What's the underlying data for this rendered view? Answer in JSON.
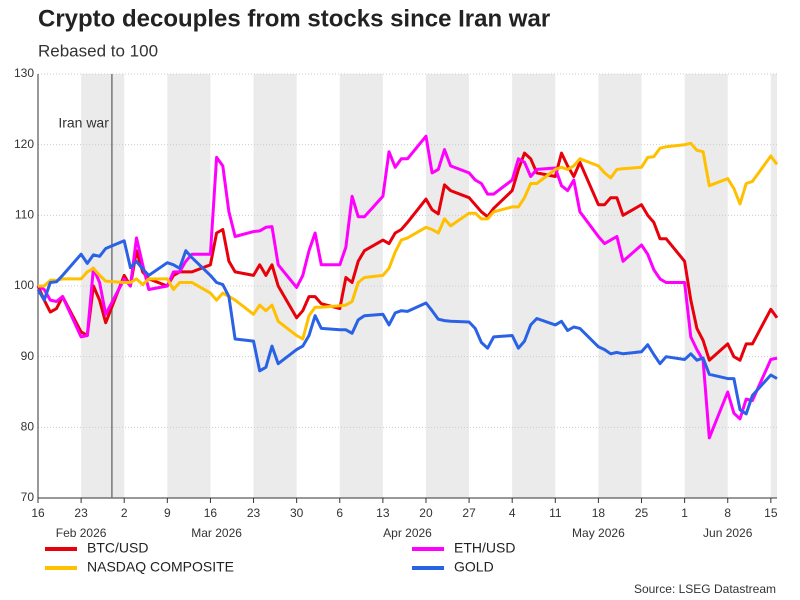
{
  "chart_data": {
    "type": "line",
    "title": "Crypto decouples from stocks since Iran war",
    "subtitle": "Rebased to 100",
    "source": "Source: LSEG Datastream",
    "x": [
      "2026-02-16",
      "2026-02-17",
      "2026-02-18",
      "2026-02-19",
      "2026-02-20",
      "2026-02-23",
      "2026-02-24",
      "2026-02-25",
      "2026-02-26",
      "2026-02-27",
      "2026-03-02",
      "2026-03-03",
      "2026-03-04",
      "2026-03-05",
      "2026-03-06",
      "2026-03-09",
      "2026-03-10",
      "2026-03-11",
      "2026-03-12",
      "2026-03-13",
      "2026-03-16",
      "2026-03-17",
      "2026-03-18",
      "2026-03-19",
      "2026-03-20",
      "2026-03-23",
      "2026-03-24",
      "2026-03-25",
      "2026-03-26",
      "2026-03-27",
      "2026-03-30",
      "2026-03-31",
      "2026-04-01",
      "2026-04-02",
      "2026-04-03",
      "2026-04-06",
      "2026-04-07",
      "2026-04-08",
      "2026-04-09",
      "2026-04-10",
      "2026-04-13",
      "2026-04-14",
      "2026-04-15",
      "2026-04-16",
      "2026-04-17",
      "2026-04-20",
      "2026-04-21",
      "2026-04-22",
      "2026-04-23",
      "2026-04-24",
      "2026-04-27",
      "2026-04-28",
      "2026-04-29",
      "2026-04-30",
      "2026-05-01",
      "2026-05-04",
      "2026-05-05",
      "2026-05-06",
      "2026-05-07",
      "2026-05-08",
      "2026-05-11",
      "2026-05-12",
      "2026-05-13",
      "2026-05-14",
      "2026-05-15",
      "2026-05-18",
      "2026-05-19",
      "2026-05-20",
      "2026-05-21",
      "2026-05-22",
      "2026-05-25",
      "2026-05-26",
      "2026-05-27",
      "2026-05-28",
      "2026-05-29",
      "2026-06-01",
      "2026-06-02",
      "2026-06-03",
      "2026-06-04",
      "2026-06-05",
      "2026-06-08",
      "2026-06-09",
      "2026-06-10",
      "2026-06-11",
      "2026-06-12",
      "2026-06-15",
      "2026-06-16"
    ],
    "series": [
      {
        "name": "BTC/USD",
        "color": "#e8000b",
        "values": [
          100,
          98,
          96.3,
          96.8,
          98.5,
          93.5,
          93,
          100,
          98,
          94.8,
          101.5,
          100,
          105,
          102,
          101,
          100,
          101.5,
          102,
          102,
          102,
          103,
          107.5,
          108,
          103.5,
          102,
          101.5,
          103,
          101.5,
          103,
          100,
          95.5,
          96.5,
          98.5,
          98.5,
          97.5,
          96.8,
          101.2,
          100.5,
          103.5,
          105,
          106.5,
          106,
          107.5,
          108,
          109,
          112.3,
          110.8,
          110.2,
          114.3,
          113.5,
          112.5,
          111.5,
          110.5,
          109.8,
          111,
          113.5,
          116.5,
          118.8,
          118,
          116,
          115.5,
          118.8,
          117,
          115.5,
          117.5,
          111.5,
          111.5,
          112.5,
          112.5,
          110,
          111.5,
          110,
          109,
          106.7,
          106.7,
          103.5,
          98,
          94,
          92.3,
          89.5,
          91.8,
          90,
          89.5,
          91.8,
          91.8,
          96.7,
          95.5
        ]
      },
      {
        "name": "ETH/USD",
        "color": "#f0f",
        "values": [
          100,
          99.5,
          98,
          97.8,
          98.5,
          92.8,
          93,
          102.5,
          100.5,
          96,
          101,
          100,
          106.8,
          103,
          99.5,
          100,
          102,
          102,
          103.5,
          104.5,
          104.5,
          118.2,
          117,
          110.5,
          107,
          107.7,
          107.8,
          108.3,
          108.4,
          103,
          99.8,
          101.5,
          105,
          107.5,
          103,
          103,
          105.5,
          112.7,
          109.8,
          109.8,
          112.7,
          119,
          116.8,
          118,
          118,
          121.2,
          116,
          116.5,
          119.3,
          117,
          116,
          115,
          114.5,
          113,
          113,
          115,
          118,
          117.5,
          115.5,
          116.5,
          116.7,
          114.2,
          113.5,
          115,
          110.5,
          107,
          106,
          106.5,
          107,
          103.5,
          105.8,
          104.5,
          102.3,
          101,
          100.5,
          100.5,
          92.8,
          91,
          89.5,
          78.5,
          85,
          82,
          81.2,
          84,
          83.8,
          89.6,
          89.8
        ]
      },
      {
        "name": "NASDAQ COMPOSITE",
        "color": "#ffc000",
        "values": [
          100,
          100,
          100.8,
          100.8,
          101,
          101,
          102,
          102.5,
          101.5,
          100.7,
          100.5,
          100.5,
          101,
          100.2,
          101,
          101,
          99.5,
          100.5,
          100.5,
          100.5,
          99,
          98,
          99,
          98.5,
          98,
          96,
          97.3,
          96.5,
          97.3,
          95,
          93,
          92.5,
          95.8,
          97,
          97,
          97.2,
          97.3,
          97.8,
          100.5,
          101.2,
          101.5,
          102.5,
          104.8,
          106.5,
          106.8,
          108.3,
          108,
          107.5,
          109.5,
          108.5,
          110.3,
          110.3,
          109.5,
          109.5,
          110.5,
          111.2,
          111.2,
          112.5,
          114.5,
          114.5,
          116.5,
          116.8,
          116.5,
          117,
          118,
          117,
          116,
          115.3,
          116.5,
          116.6,
          116.8,
          118.2,
          118.3,
          119.5,
          119.7,
          120,
          120.2,
          119.2,
          119,
          114.2,
          115.2,
          113.8,
          111.6,
          114.5,
          114.8,
          118.4,
          117.2
        ]
      },
      {
        "name": "GOLD",
        "color": "#2a62e6",
        "values": [
          99.5,
          98,
          100.5,
          100.6,
          101.5,
          104.5,
          103.2,
          104.4,
          104.2,
          105.3,
          106.4,
          102.6,
          103.5,
          102.4,
          101.5,
          103.3,
          103,
          102.5,
          105,
          104,
          101.5,
          100.5,
          100.2,
          98.5,
          92.5,
          92.2,
          88,
          88.5,
          91.5,
          89,
          91,
          91.5,
          93,
          95.8,
          94,
          93.8,
          93.8,
          93.3,
          95.2,
          95.8,
          96,
          94.5,
          96.2,
          96.5,
          96.4,
          97.6,
          96.5,
          95.3,
          95.1,
          95,
          94.9,
          94,
          92,
          91.2,
          92.8,
          93,
          91.2,
          92.2,
          94.5,
          95.4,
          94.5,
          95,
          93.7,
          94.2,
          94,
          91.4,
          91,
          90.4,
          90.6,
          90.4,
          90.7,
          91.7,
          90.3,
          89,
          90,
          89.6,
          90.4,
          89.5,
          89.8,
          87.5,
          86.9,
          86.9,
          82.5,
          81.9,
          84.5,
          87.4,
          86.9
        ]
      }
    ],
    "xlim": [
      "2026-02-16",
      "2026-06-16"
    ],
    "xticks": [
      {
        "value": "2026-02-16",
        "label": "16"
      },
      {
        "value": "2026-02-23",
        "label": "23"
      },
      {
        "value": "2026-03-02",
        "label": "2"
      },
      {
        "value": "2026-03-09",
        "label": "9"
      },
      {
        "value": "2026-03-16",
        "label": "16"
      },
      {
        "value": "2026-03-23",
        "label": "23"
      },
      {
        "value": "2026-03-30",
        "label": "30"
      },
      {
        "value": "2026-04-06",
        "label": "6"
      },
      {
        "value": "2026-04-13",
        "label": "13"
      },
      {
        "value": "2026-04-20",
        "label": "20"
      },
      {
        "value": "2026-04-27",
        "label": "27"
      },
      {
        "value": "2026-05-04",
        "label": "4"
      },
      {
        "value": "2026-05-11",
        "label": "11"
      },
      {
        "value": "2026-05-18",
        "label": "18"
      },
      {
        "value": "2026-05-25",
        "label": "25"
      },
      {
        "value": "2026-06-01",
        "label": "1"
      },
      {
        "value": "2026-06-08",
        "label": "8"
      },
      {
        "value": "2026-06-15",
        "label": "15"
      }
    ],
    "month_labels": [
      {
        "value": "2026-02-23",
        "label": "Feb 2026"
      },
      {
        "value": "2026-03-17",
        "label": "Mar 2026"
      },
      {
        "value": "2026-04-17",
        "label": "Apr 2026"
      },
      {
        "value": "2026-05-18",
        "label": "May 2026"
      },
      {
        "value": "2026-06-08",
        "label": "Jun 2026"
      }
    ],
    "ylim": [
      70,
      130
    ],
    "yticks": [
      70,
      80,
      90,
      100,
      110,
      120,
      130
    ],
    "grid": true,
    "annotations": [
      {
        "label": "Iran war",
        "x": "2026-02-28"
      }
    ]
  }
}
